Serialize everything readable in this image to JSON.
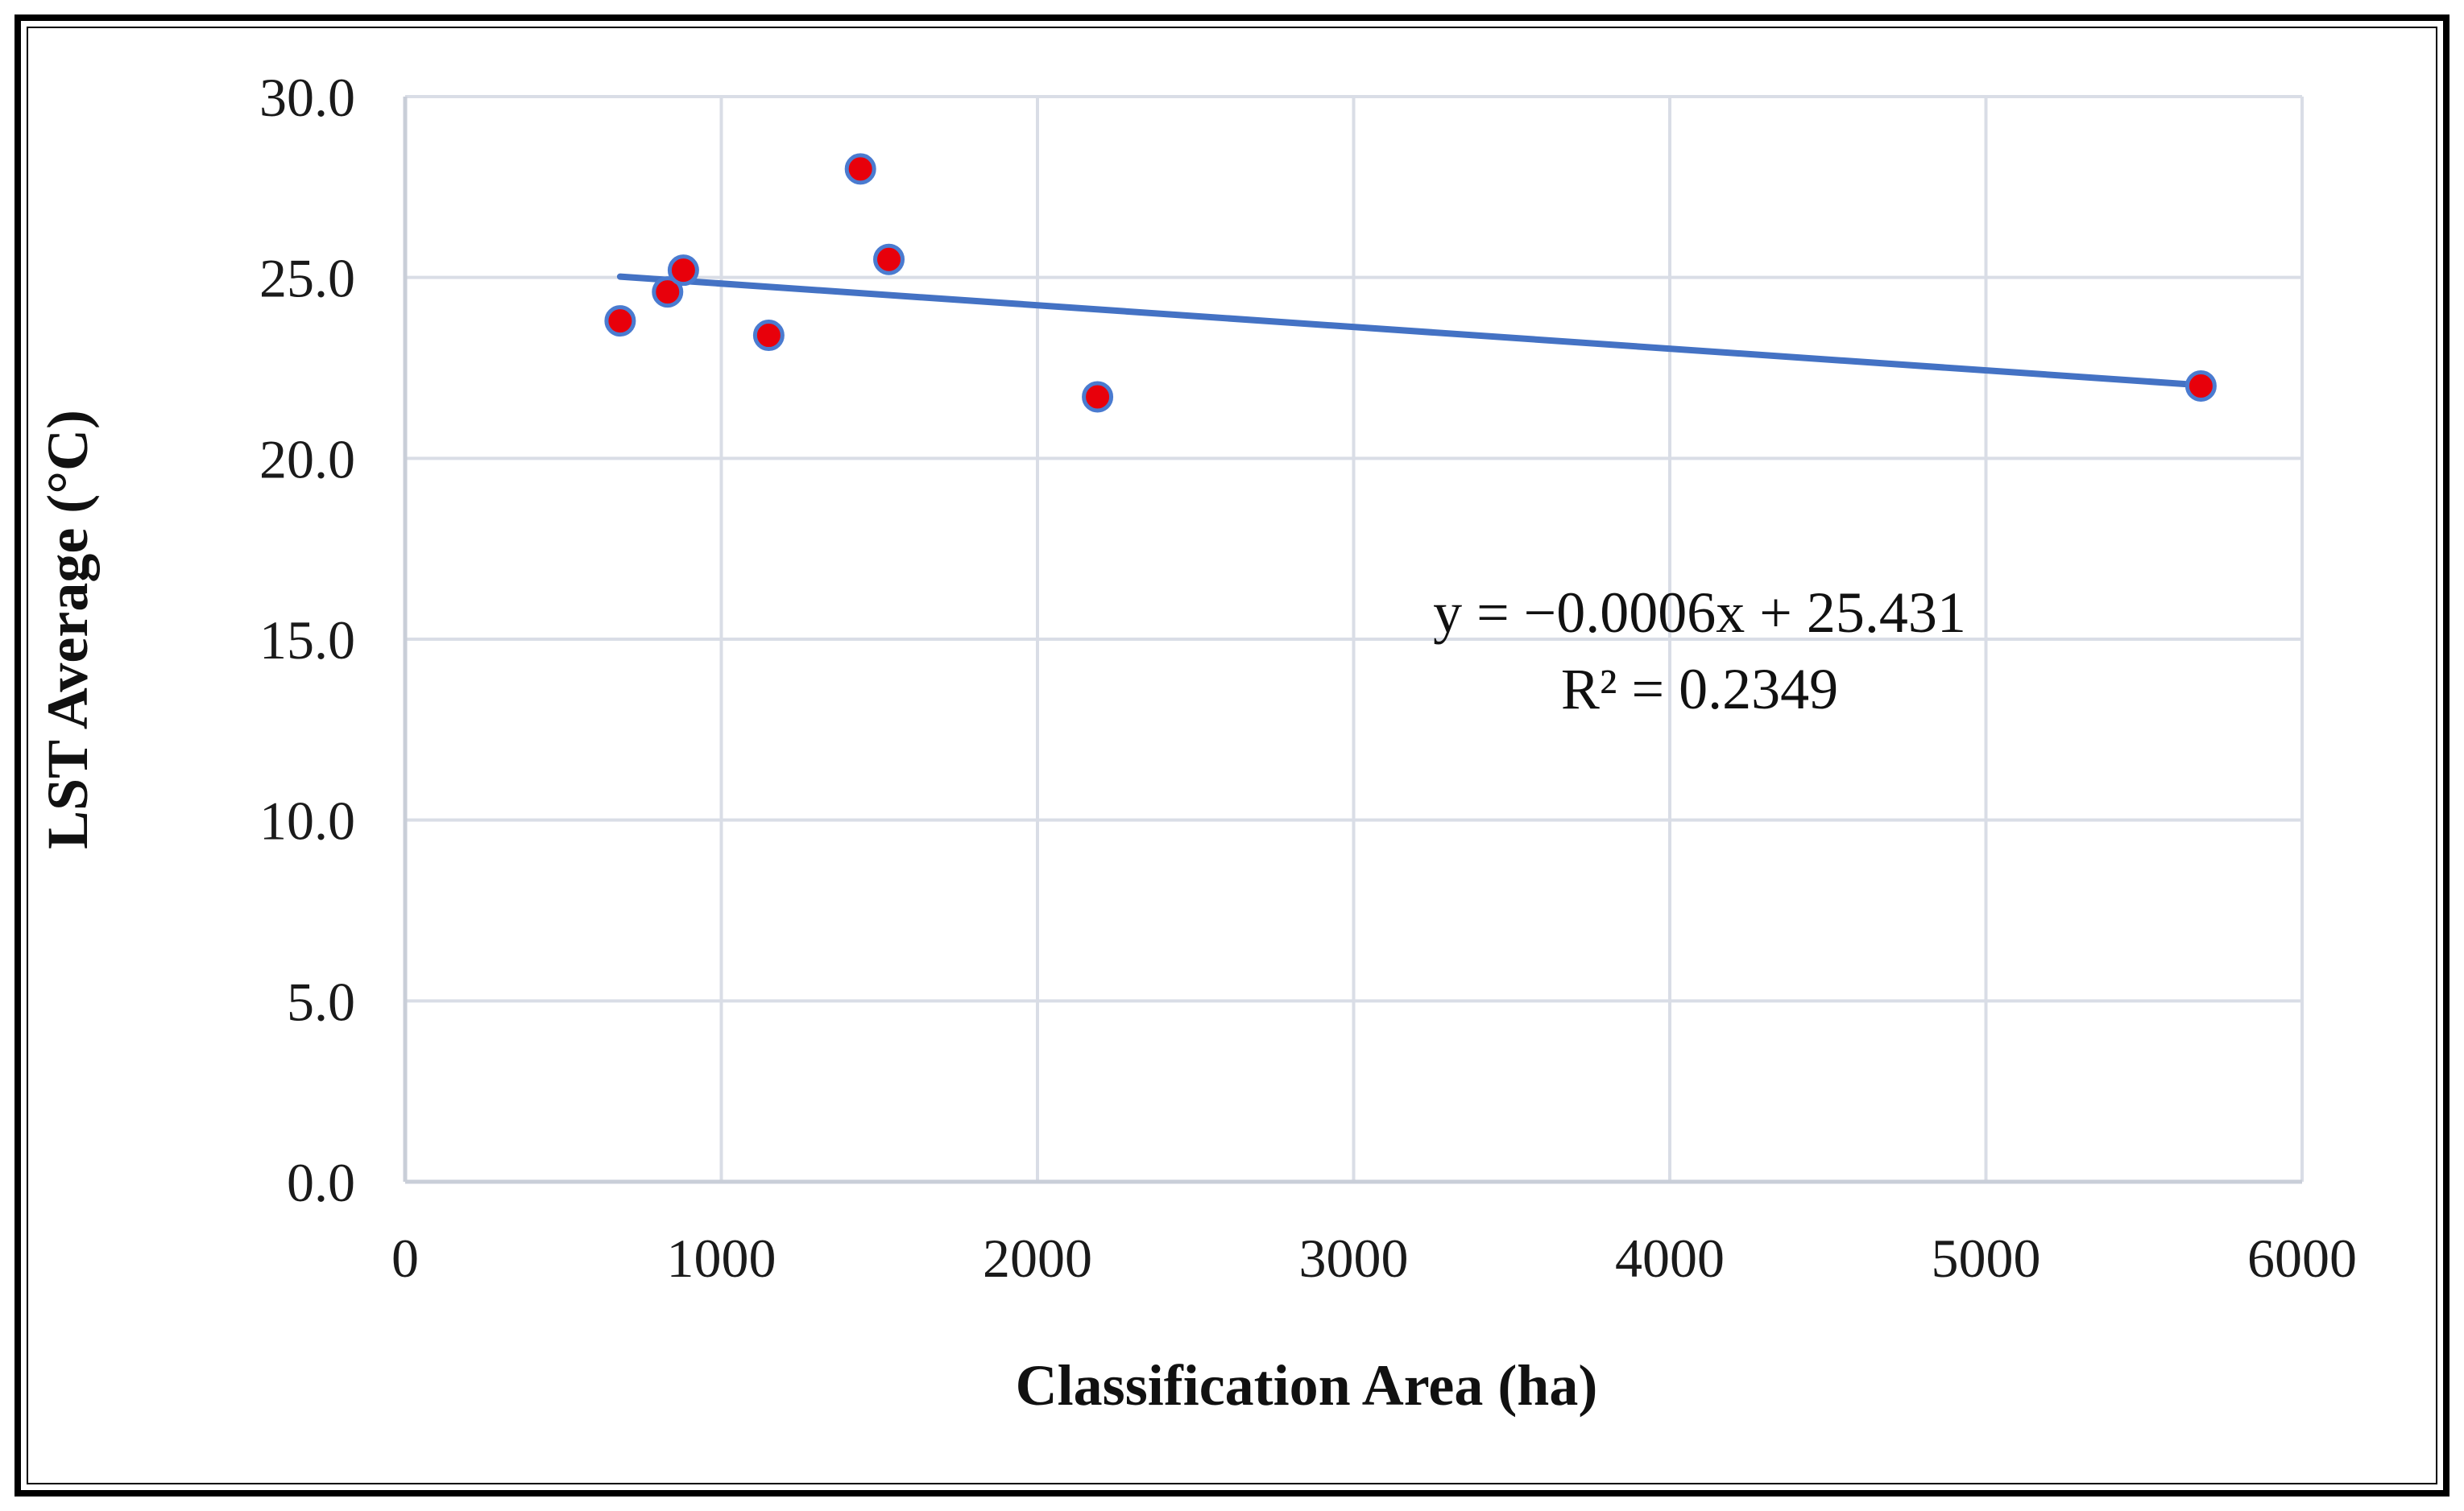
{
  "chart_data": {
    "type": "scatter",
    "title": "",
    "xlabel": "Classification Area (ha)",
    "ylabel": "LST Average (°C)",
    "xlim": [
      0,
      6000
    ],
    "ylim": [
      0,
      30
    ],
    "x_ticks": [
      0,
      1000,
      2000,
      3000,
      4000,
      5000,
      6000
    ],
    "x_tick_labels": [
      "0",
      "1000",
      "2000",
      "3000",
      "4000",
      "5000",
      "6000"
    ],
    "y_ticks": [
      0,
      5,
      10,
      15,
      20,
      25,
      30
    ],
    "y_tick_labels": [
      "0.0",
      "5.0",
      "10.0",
      "15.0",
      "20.0",
      "25.0",
      "30.0"
    ],
    "grid": true,
    "series": [
      {
        "name": "LST Average",
        "x": [
          680,
          830,
          880,
          1150,
          1440,
          1530,
          2190,
          5680
        ],
        "y": [
          23.8,
          24.6,
          25.2,
          23.4,
          28.0,
          25.5,
          21.7,
          22.0
        ]
      }
    ],
    "trendline": {
      "type": "linear",
      "slope": -0.0006,
      "intercept": 25.431,
      "x_range": [
        680,
        5680
      ],
      "equation": "y = −0.0006x + 25.431",
      "r_squared": "R² = 0.2349"
    },
    "colors": {
      "marker_fill": "#e8000b",
      "marker_edge": "#4a7bd0",
      "trendline": "#4472c4",
      "grid": "#d9dde6",
      "axis": "#c9ced8",
      "frame": "#000000"
    }
  }
}
